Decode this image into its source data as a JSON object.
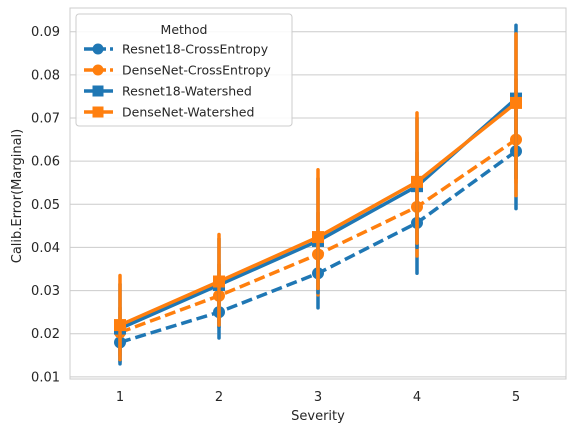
{
  "chart_data": {
    "type": "line",
    "xlabel": "Severity",
    "ylabel": "Calib.Error(Marginal)",
    "categories": [
      "1",
      "2",
      "3",
      "4",
      "5"
    ],
    "ylim": [
      0.0095,
      0.0955
    ],
    "yticks": [
      0.01,
      0.02,
      0.03,
      0.04,
      0.05,
      0.06,
      0.07,
      0.08,
      0.09
    ],
    "ytick_labels": [
      "0.01",
      "0.02",
      "0.03",
      "0.04",
      "0.05",
      "0.06",
      "0.07",
      "0.08",
      "0.09"
    ],
    "grid": "horizontal",
    "legend": {
      "title": "Method",
      "placement": "upper-left"
    },
    "series": [
      {
        "name": "Resnet18-CrossEntropy",
        "color": "#1f77b4",
        "marker": "circle",
        "dashed": true,
        "values": [
          0.018,
          0.025,
          0.034,
          0.0457,
          0.0623
        ],
        "err_low": [
          0.013,
          0.019,
          0.026,
          0.034,
          0.049
        ],
        "err_high": [
          0.023,
          0.032,
          0.043,
          0.057,
          0.076
        ]
      },
      {
        "name": "DenseNet-CrossEntropy",
        "color": "#ff7f0e",
        "marker": "circle",
        "dashed": true,
        "values": [
          0.0203,
          0.0288,
          0.0384,
          0.0494,
          0.065
        ],
        "err_low": [
          0.015,
          0.022,
          0.029,
          0.038,
          0.052
        ],
        "err_high": [
          0.026,
          0.036,
          0.048,
          0.062,
          0.079
        ]
      },
      {
        "name": "Resnet18-Watershed",
        "color": "#1f77b4",
        "marker": "square",
        "dashed": false,
        "values": [
          0.0212,
          0.0313,
          0.0415,
          0.0542,
          0.0745
        ],
        "err_low": [
          0.0135,
          0.0215,
          0.0295,
          0.04,
          0.056
        ],
        "err_high": [
          0.0315,
          0.042,
          0.056,
          0.07,
          0.0915
        ]
      },
      {
        "name": "DenseNet-Watershed",
        "color": "#ff7f0e",
        "marker": "square",
        "dashed": false,
        "values": [
          0.022,
          0.0321,
          0.0424,
          0.0552,
          0.0735
        ],
        "err_low": [
          0.014,
          0.022,
          0.0305,
          0.041,
          0.055
        ],
        "err_high": [
          0.0335,
          0.043,
          0.058,
          0.0712,
          0.0895
        ]
      }
    ]
  }
}
